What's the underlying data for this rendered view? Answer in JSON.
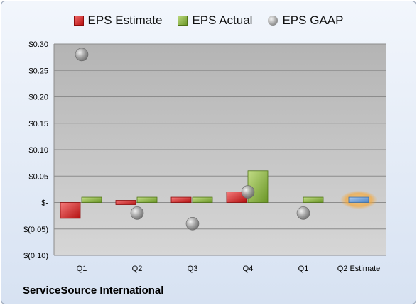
{
  "chart_data": {
    "type": "bar",
    "categories": [
      "Q1",
      "Q2",
      "Q3",
      "Q4",
      "Q1",
      "Q2 Estimate"
    ],
    "series": [
      {
        "name": "EPS Estimate",
        "values": [
          -0.03,
          0.0,
          0.01,
          0.02,
          null,
          null
        ],
        "color": "#cc1f1f"
      },
      {
        "name": "EPS Actual",
        "values": [
          0.01,
          0.01,
          0.01,
          0.06,
          0.01,
          null
        ],
        "color": "#8ab140"
      },
      {
        "name": "EPS GAAP",
        "values": [
          0.28,
          -0.02,
          -0.04,
          0.02,
          -0.02,
          null
        ],
        "color": "#9a9a9a"
      }
    ],
    "highlight": {
      "category": "Q2 Estimate",
      "value": 0.01,
      "color": "#6fa0d8",
      "glow": "#f5b041"
    },
    "ylim": [
      -0.1,
      0.3
    ],
    "yticks": [
      {
        "value": 0.3,
        "label": "$0.30"
      },
      {
        "value": 0.25,
        "label": "$0.25"
      },
      {
        "value": 0.2,
        "label": "$0.20"
      },
      {
        "value": 0.15,
        "label": "$0.15"
      },
      {
        "value": 0.1,
        "label": "$0.10"
      },
      {
        "value": 0.05,
        "label": "$0.05"
      },
      {
        "value": 0.0,
        "label": "$-"
      },
      {
        "value": -0.05,
        "label": "$(0.05)"
      },
      {
        "value": -0.1,
        "label": "$(0.10)"
      }
    ],
    "grid": true,
    "legend_position": "top"
  },
  "legend": {
    "estimate": "EPS Estimate",
    "actual": "EPS Actual",
    "gaap": "EPS GAAP"
  },
  "footer": {
    "company": "ServiceSource International"
  }
}
